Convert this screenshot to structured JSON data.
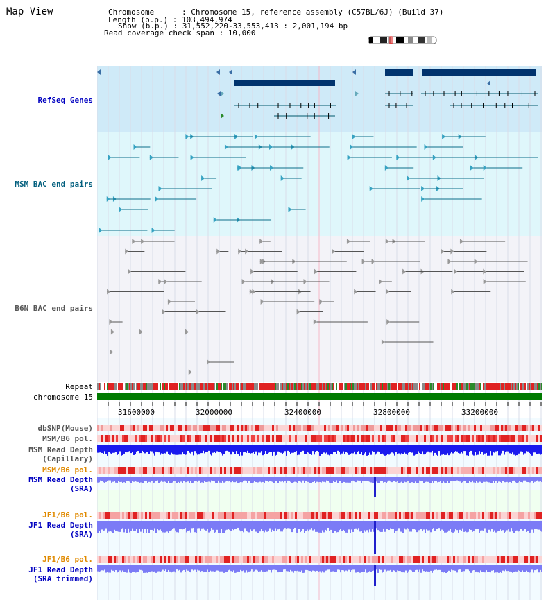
{
  "page": {
    "title": "Map View"
  },
  "header": {
    "chromosome_label": "Chromosome      : Chromosome 15, reference assembly (C57BL/6J) (Build 37)",
    "length_label": "Length (b.p.) : 103,494,974",
    "show_label": "Show (b.p.) : 31,552,220-33,553,413 : 2,001,194 bp",
    "coverage_label": "Read coverage check span : 10,000"
  },
  "tracks": {
    "refseq": "RefSeq Genes",
    "msm_bac": "MSM BAC end pairs",
    "b6n_bac": "B6N BAC end pairs",
    "repeat": "Repeat",
    "chromosome": "chromosome 15",
    "dbsnp": "dbSNP(Mouse)",
    "msm_b6_pol_1": "MSM/B6 pol.",
    "msm_depth_cap_1": "MSM Read Depth",
    "msm_depth_cap_2": "(Capillary)",
    "msm_b6_pol_2": "MSM/B6 pol.",
    "msm_depth_sra_1": "MSM Read Depth",
    "msm_depth_sra_2": "(SRA)",
    "jf1_pol_1": "JF1/B6 pol.",
    "jf1_depth_sra_1": "JF1 Read Depth",
    "jf1_depth_sra_2": "(SRA)",
    "jf1_pol_2": "JF1/B6 pol.",
    "jf1_depth_trim_1": "JF1 Read Depth",
    "jf1_depth_trim_2": "(SRA trimmed)"
  },
  "axis": {
    "ticks": [
      "31600000",
      "32000000",
      "32400000",
      "32800000",
      "33200000"
    ]
  },
  "colors": {
    "panel_blue": "#cfeaf8",
    "gene_dark": "#00336e",
    "chrom_green": "#007a00",
    "depth_blue": "#1a1aee",
    "depth_light": "#7b7bf6",
    "pol_red": "#ee2222"
  }
}
